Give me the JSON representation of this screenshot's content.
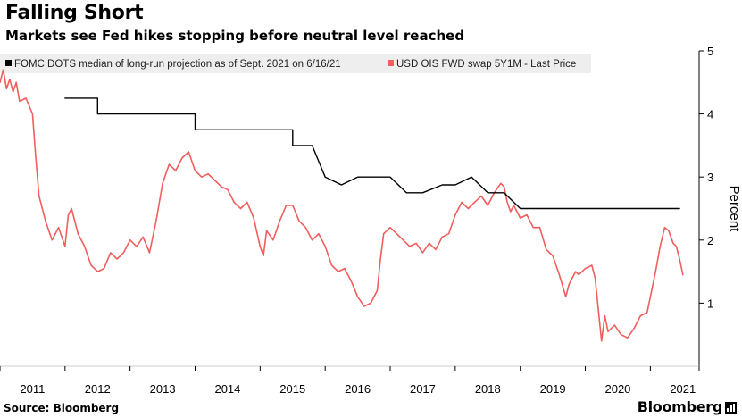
{
  "header": {
    "title": "Falling Short",
    "subtitle": "Markets see Fed hikes stopping before neutral level reached"
  },
  "footer": {
    "source": "Source: Bloomberg",
    "brand": "Bloomberg"
  },
  "colors": {
    "fomc": "#000000",
    "swap": "#f25d5d",
    "axis": "#000000",
    "legend_bg": "#eeeeee"
  },
  "chart_data": {
    "type": "line",
    "title": "Falling Short",
    "subtitle": "Markets see Fed hikes stopping before neutral level reached",
    "ylabel": "Percent",
    "ylim": [
      0,
      5
    ],
    "yticks": [
      "1",
      "2",
      "3",
      "4",
      "5"
    ],
    "yaxis_side": "right",
    "xlim": [
      2011.0,
      2021.75
    ],
    "xticks": [
      "2011",
      "2012",
      "2013",
      "2014",
      "2015",
      "2016",
      "2017",
      "2018",
      "2019",
      "2020",
      "2021"
    ],
    "legend_position": "top",
    "grid": false,
    "series": [
      {
        "name": "FOMC DOTS median of long-run projection as of Sept. 2021 on 6/16/21",
        "color": "#000000",
        "style": "step",
        "points": [
          [
            2012.0,
            4.25
          ],
          [
            2012.5,
            4.25
          ],
          [
            2012.5,
            4.0
          ],
          [
            2014.0,
            4.0
          ],
          [
            2014.0,
            3.75
          ],
          [
            2015.5,
            3.75
          ],
          [
            2015.5,
            3.5
          ],
          [
            2015.8,
            3.5
          ],
          [
            2016.0,
            3.0
          ],
          [
            2016.25,
            2.875
          ],
          [
            2016.5,
            3.0
          ],
          [
            2017.0,
            3.0
          ],
          [
            2017.25,
            2.75
          ],
          [
            2017.5,
            2.75
          ],
          [
            2017.8,
            2.875
          ],
          [
            2018.0,
            2.875
          ],
          [
            2018.25,
            3.0
          ],
          [
            2018.5,
            2.75
          ],
          [
            2018.75,
            2.75
          ],
          [
            2019.0,
            2.5
          ],
          [
            2021.45,
            2.5
          ]
        ]
      },
      {
        "name": "USD OIS FWD swap 5Y1M - Last Price",
        "color": "#f25d5d",
        "style": "line",
        "points": [
          [
            2011.0,
            4.5
          ],
          [
            2011.05,
            4.7
          ],
          [
            2011.1,
            4.4
          ],
          [
            2011.15,
            4.55
          ],
          [
            2011.2,
            4.35
          ],
          [
            2011.25,
            4.5
          ],
          [
            2011.3,
            4.2
          ],
          [
            2011.4,
            4.25
          ],
          [
            2011.5,
            4.0
          ],
          [
            2011.55,
            3.3
          ],
          [
            2011.6,
            2.7
          ],
          [
            2011.7,
            2.3
          ],
          [
            2011.8,
            2.0
          ],
          [
            2011.9,
            2.2
          ],
          [
            2012.0,
            1.9
          ],
          [
            2012.05,
            2.4
          ],
          [
            2012.1,
            2.5
          ],
          [
            2012.2,
            2.1
          ],
          [
            2012.3,
            1.9
          ],
          [
            2012.4,
            1.6
          ],
          [
            2012.5,
            1.5
          ],
          [
            2012.6,
            1.55
          ],
          [
            2012.7,
            1.8
          ],
          [
            2012.8,
            1.7
          ],
          [
            2012.9,
            1.8
          ],
          [
            2013.0,
            2.0
          ],
          [
            2013.1,
            1.9
          ],
          [
            2013.2,
            2.05
          ],
          [
            2013.3,
            1.8
          ],
          [
            2013.4,
            2.3
          ],
          [
            2013.5,
            2.9
          ],
          [
            2013.6,
            3.2
          ],
          [
            2013.7,
            3.1
          ],
          [
            2013.8,
            3.3
          ],
          [
            2013.9,
            3.4
          ],
          [
            2014.0,
            3.1
          ],
          [
            2014.1,
            3.0
          ],
          [
            2014.2,
            3.05
          ],
          [
            2014.3,
            2.95
          ],
          [
            2014.4,
            2.85
          ],
          [
            2014.5,
            2.8
          ],
          [
            2014.6,
            2.6
          ],
          [
            2014.7,
            2.5
          ],
          [
            2014.8,
            2.6
          ],
          [
            2014.9,
            2.35
          ],
          [
            2015.0,
            1.9
          ],
          [
            2015.05,
            1.75
          ],
          [
            2015.1,
            2.15
          ],
          [
            2015.2,
            2.0
          ],
          [
            2015.3,
            2.3
          ],
          [
            2015.4,
            2.55
          ],
          [
            2015.5,
            2.55
          ],
          [
            2015.6,
            2.3
          ],
          [
            2015.7,
            2.2
          ],
          [
            2015.8,
            2.0
          ],
          [
            2015.9,
            2.1
          ],
          [
            2016.0,
            1.9
          ],
          [
            2016.1,
            1.6
          ],
          [
            2016.2,
            1.5
          ],
          [
            2016.3,
            1.55
          ],
          [
            2016.4,
            1.35
          ],
          [
            2016.5,
            1.1
          ],
          [
            2016.6,
            0.95
          ],
          [
            2016.7,
            1.0
          ],
          [
            2016.8,
            1.2
          ],
          [
            2016.85,
            1.7
          ],
          [
            2016.9,
            2.1
          ],
          [
            2017.0,
            2.2
          ],
          [
            2017.1,
            2.1
          ],
          [
            2017.2,
            2.0
          ],
          [
            2017.3,
            1.9
          ],
          [
            2017.4,
            1.95
          ],
          [
            2017.5,
            1.8
          ],
          [
            2017.6,
            1.95
          ],
          [
            2017.7,
            1.85
          ],
          [
            2017.8,
            2.05
          ],
          [
            2017.9,
            2.1
          ],
          [
            2018.0,
            2.4
          ],
          [
            2018.1,
            2.6
          ],
          [
            2018.2,
            2.5
          ],
          [
            2018.3,
            2.6
          ],
          [
            2018.4,
            2.7
          ],
          [
            2018.5,
            2.55
          ],
          [
            2018.6,
            2.75
          ],
          [
            2018.7,
            2.9
          ],
          [
            2018.75,
            2.85
          ],
          [
            2018.8,
            2.6
          ],
          [
            2018.85,
            2.45
          ],
          [
            2018.9,
            2.55
          ],
          [
            2019.0,
            2.35
          ],
          [
            2019.1,
            2.4
          ],
          [
            2019.2,
            2.2
          ],
          [
            2019.3,
            2.2
          ],
          [
            2019.4,
            1.85
          ],
          [
            2019.5,
            1.75
          ],
          [
            2019.6,
            1.45
          ],
          [
            2019.7,
            1.1
          ],
          [
            2019.75,
            1.3
          ],
          [
            2019.85,
            1.5
          ],
          [
            2019.9,
            1.45
          ],
          [
            2020.0,
            1.55
          ],
          [
            2020.1,
            1.6
          ],
          [
            2020.15,
            1.4
          ],
          [
            2020.2,
            0.9
          ],
          [
            2020.25,
            0.4
          ],
          [
            2020.3,
            0.8
          ],
          [
            2020.35,
            0.55
          ],
          [
            2020.45,
            0.65
          ],
          [
            2020.55,
            0.5
          ],
          [
            2020.65,
            0.45
          ],
          [
            2020.75,
            0.6
          ],
          [
            2020.85,
            0.8
          ],
          [
            2020.95,
            0.85
          ],
          [
            2021.0,
            1.1
          ],
          [
            2021.08,
            1.5
          ],
          [
            2021.15,
            1.9
          ],
          [
            2021.22,
            2.2
          ],
          [
            2021.28,
            2.15
          ],
          [
            2021.35,
            1.95
          ],
          [
            2021.4,
            1.9
          ],
          [
            2021.45,
            1.7
          ],
          [
            2021.5,
            1.45
          ]
        ]
      }
    ]
  }
}
